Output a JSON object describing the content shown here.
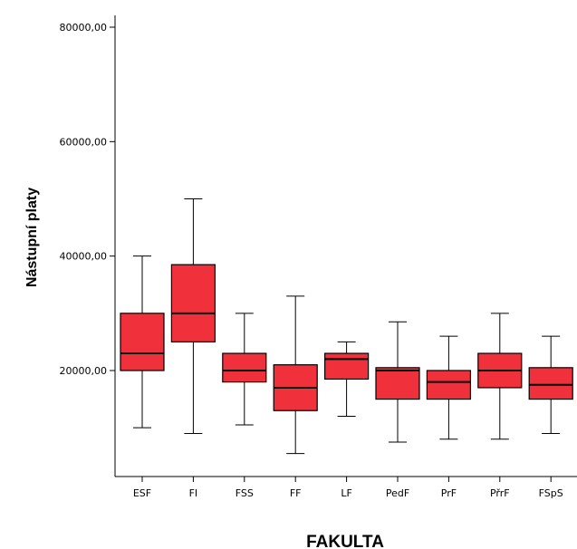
{
  "chart_data": {
    "type": "boxplot",
    "xlabel": "FAKULTA",
    "ylabel": "Nástupní platy",
    "ylim": [
      0,
      80000
    ],
    "y_ticks": [
      {
        "value": 20000,
        "label": "20000,00"
      },
      {
        "value": 40000,
        "label": "40000,00"
      },
      {
        "value": 60000,
        "label": "60000,00"
      },
      {
        "value": 80000,
        "label": "80000,00"
      }
    ],
    "categories": [
      "ESF",
      "FI",
      "FSS",
      "FF",
      "LF",
      "PedF",
      "PrF",
      "PřrF",
      "FSpS"
    ],
    "boxes": [
      {
        "min": 10000,
        "q1": 20000,
        "median": 23000,
        "q3": 30000,
        "max": 40000
      },
      {
        "min": 9000,
        "q1": 25000,
        "median": 30000,
        "q3": 38500,
        "max": 50000
      },
      {
        "min": 10500,
        "q1": 18000,
        "median": 20000,
        "q3": 23000,
        "max": 30000
      },
      {
        "min": 5500,
        "q1": 13000,
        "median": 17000,
        "q3": 21000,
        "max": 33000
      },
      {
        "min": 12000,
        "q1": 18500,
        "median": 22000,
        "q3": 23000,
        "max": 25000
      },
      {
        "min": 7500,
        "q1": 15000,
        "median": 20000,
        "q3": 20500,
        "max": 28500
      },
      {
        "min": 8000,
        "q1": 15000,
        "median": 18000,
        "q3": 20000,
        "max": 26000
      },
      {
        "min": 8000,
        "q1": 17000,
        "median": 20000,
        "q3": 23000,
        "max": 30000
      },
      {
        "min": 9000,
        "q1": 15000,
        "median": 17500,
        "q3": 20500,
        "max": 26000
      }
    ],
    "box_color": "#f0303a",
    "grid": false,
    "legend": "none"
  }
}
